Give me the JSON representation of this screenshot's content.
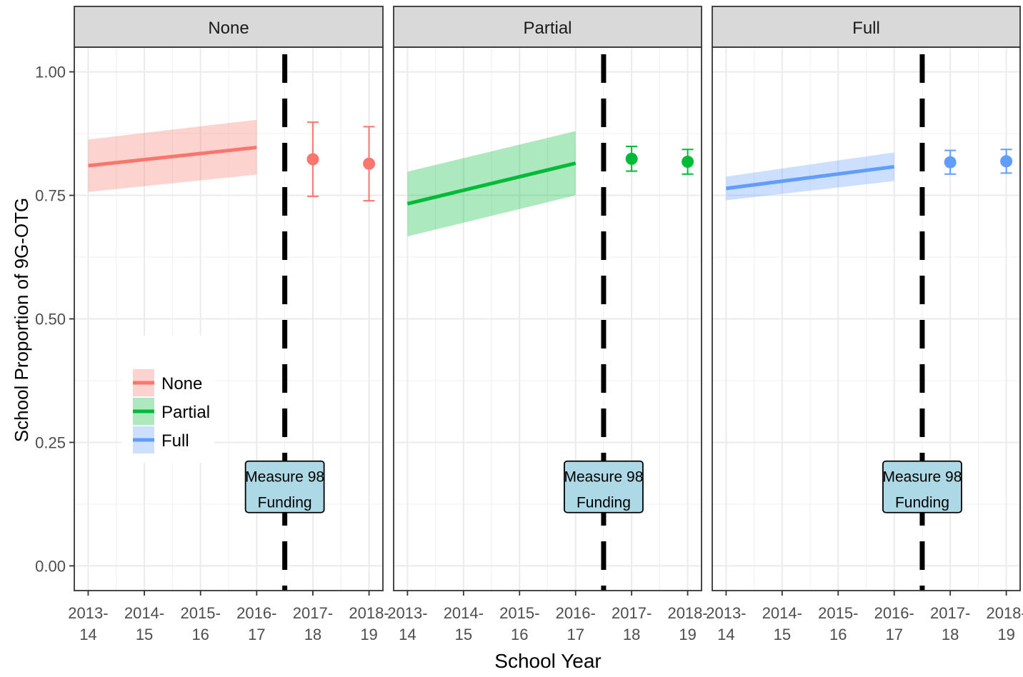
{
  "chart_data": {
    "type": "line",
    "xlabel": "School Year",
    "ylabel": "School Proportion of 9G-OTG",
    "ylim": [
      -0.05,
      1.05
    ],
    "y_ticks": [
      0.0,
      0.25,
      0.5,
      0.75,
      1.0
    ],
    "y_tick_labels": [
      "0.00",
      "0.25",
      "0.50",
      "0.75",
      "1.00"
    ],
    "x_categories": [
      "2013-14",
      "2014-15",
      "2015-16",
      "2016-17",
      "2017-18",
      "2018-19"
    ],
    "x_tick_labels": [
      {
        "line1": "2013-",
        "line2": "14"
      },
      {
        "line1": "2014-",
        "line2": "15"
      },
      {
        "line1": "2015-",
        "line2": "16"
      },
      {
        "line1": "2016-",
        "line2": "17"
      },
      {
        "line1": "2017-",
        "line2": "18"
      },
      {
        "line1": "2018-",
        "line2": "19"
      }
    ],
    "grid": true,
    "facet_position": "top",
    "legend_position": "inside-left",
    "intervention_x": 4.5,
    "annotation": {
      "line1": "Measure 98",
      "line2": "Funding",
      "y": 0.16
    },
    "annotation_fill": "#add8e6",
    "series": [
      {
        "name": "None",
        "color": "#f8766d",
        "trend": {
          "x": [
            1,
            4
          ],
          "y": [
            0.81,
            0.847
          ],
          "ci_start": [
            0.757,
            0.863
          ],
          "ci_end": [
            0.792,
            0.903
          ]
        },
        "points": [
          {
            "x": 5,
            "y": 0.823,
            "lo": 0.748,
            "hi": 0.898
          },
          {
            "x": 6,
            "y": 0.814,
            "lo": 0.739,
            "hi": 0.889
          }
        ]
      },
      {
        "name": "Partial",
        "color": "#00ba38",
        "trend": {
          "x": [
            1,
            4
          ],
          "y": [
            0.733,
            0.815
          ],
          "ci_start": [
            0.667,
            0.798
          ],
          "ci_end": [
            0.75,
            0.88
          ]
        },
        "points": [
          {
            "x": 5,
            "y": 0.824,
            "lo": 0.799,
            "hi": 0.849
          },
          {
            "x": 6,
            "y": 0.818,
            "lo": 0.793,
            "hi": 0.843
          }
        ]
      },
      {
        "name": "Full",
        "color": "#619cff",
        "trend": {
          "x": [
            1,
            4
          ],
          "y": [
            0.764,
            0.808
          ],
          "ci_start": [
            0.74,
            0.788
          ],
          "ci_end": [
            0.779,
            0.837
          ]
        },
        "points": [
          {
            "x": 5,
            "y": 0.817,
            "lo": 0.793,
            "hi": 0.841
          },
          {
            "x": 6,
            "y": 0.819,
            "lo": 0.795,
            "hi": 0.843
          }
        ]
      }
    ]
  }
}
